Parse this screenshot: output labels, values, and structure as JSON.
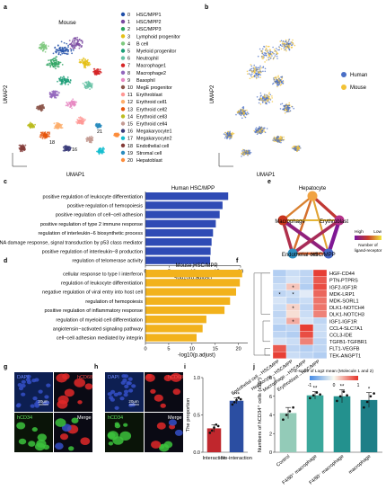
{
  "panel_letters": [
    "a",
    "b",
    "c",
    "d",
    "e",
    "f",
    "g",
    "h",
    "i",
    "j"
  ],
  "umap_labels": {
    "x": "UMAP1",
    "y": "UMAP2",
    "title_a": "Mouse"
  },
  "cluster_legend": [
    {
      "n": "0",
      "name": "HSC/MPP1",
      "color": "#1f4ea8"
    },
    {
      "n": "1",
      "name": "HSC/MPP2",
      "color": "#7a4aa0"
    },
    {
      "n": "2",
      "name": "HSC/MPP3",
      "color": "#2ca25f"
    },
    {
      "n": "3",
      "name": "Lymphoid progenitor",
      "color": "#e5c018"
    },
    {
      "n": "4",
      "name": "B cell",
      "color": "#7fc97f"
    },
    {
      "n": "5",
      "name": "Myeloid progenitor",
      "color": "#1b9e77"
    },
    {
      "n": "6",
      "name": "Neutrophil",
      "color": "#66c2a5"
    },
    {
      "n": "7",
      "name": "Macrophage1",
      "color": "#d62728"
    },
    {
      "n": "8",
      "name": "Macrophage2",
      "color": "#9467bd"
    },
    {
      "n": "9",
      "name": "Basophil",
      "color": "#e78ac3"
    },
    {
      "n": "10",
      "name": "MegE progenitor",
      "color": "#8c564b"
    },
    {
      "n": "11",
      "name": "Erythroblast",
      "color": "#ff9896"
    },
    {
      "n": "12",
      "name": "Erythroid cell1",
      "color": "#fdae6b"
    },
    {
      "n": "13",
      "name": "Erythroid cell2",
      "color": "#e6550d"
    },
    {
      "n": "14",
      "name": "Erythroid cell3",
      "color": "#bcbd22"
    },
    {
      "n": "15",
      "name": "Erythroid cell4",
      "color": "#c49c94"
    },
    {
      "n": "16",
      "name": "Megakaryocyte1",
      "color": "#393b79"
    },
    {
      "n": "17",
      "name": "Megakaryocyte2",
      "color": "#17becf"
    },
    {
      "n": "18",
      "name": "Endothelial cell",
      "color": "#843c39"
    },
    {
      "n": "19",
      "name": "Stromal cell",
      "color": "#2b8cbe"
    },
    {
      "n": "20",
      "name": "Hepatoblast",
      "color": "#fd8d3c"
    }
  ],
  "umap_a_cluster_marks": [
    "18",
    "16",
    "21"
  ],
  "species_legend": [
    {
      "name": "Human",
      "color": "#4a6fc6"
    },
    {
      "name": "Mouse",
      "color": "#f2c236"
    }
  ],
  "chart_data": [
    {
      "panel": "c",
      "type": "bar",
      "orientation": "horizontal",
      "title": "Human HSC/MPP",
      "xlabel": "-log10(p.adjust)",
      "xlim": [
        0,
        20
      ],
      "color": "#2f4bb5",
      "categories": [
        "positive regulation of leukocyte differentiation",
        "positive regulation of hemopoiesis",
        "positive regulation of cell−cell adhesion",
        "positive regulation of type 2 immune response",
        "regulation of interleukin−6 biosynthetic process",
        "regulation of DNA damage response, signal transduction by p53 class mediator",
        "positive regulation of interleukin−8 production",
        "regulation of telomerase activity"
      ],
      "values": [
        17.4,
        16.2,
        15.6,
        14.8,
        14.2,
        13.9,
        13.7,
        13.6
      ],
      "ticks": [
        0,
        5,
        10,
        15,
        20
      ]
    },
    {
      "panel": "d",
      "type": "bar",
      "orientation": "horizontal",
      "title": "Mouse HSC/MPP",
      "xlabel": "-log10(p.adjust)",
      "xlim": [
        0,
        22
      ],
      "color": "#f2b21c",
      "categories": [
        "cellular response to type I interferon",
        "regulation of leukocyte differentiation",
        "negative regulation of viral entry into host cell",
        "regulation of hemopoiesis",
        "positive regulation of inflammatory response",
        "regulation of myeloid cell differentiation",
        "angiotensin−activated signaling pathway",
        "cell−cell adhesion mediated by integrin"
      ],
      "values": [
        20.8,
        20.3,
        19.5,
        18.2,
        17.0,
        13.1,
        12.3,
        11.0
      ],
      "ticks": [
        0,
        5,
        10,
        15,
        20
      ]
    },
    {
      "panel": "e",
      "type": "network",
      "nodes": [
        "Hepatocyte",
        "Erythroblast",
        "HSC/MPP",
        "Endothelial cell",
        "Macrophage"
      ],
      "node_colors": [
        "#f1a342",
        "#b5328a",
        "#4569c7",
        "#2e8fc0",
        "#c8341d"
      ],
      "edges": [
        {
          "from": "Hepatocyte",
          "to": "Erythroblast",
          "weight": 0.55
        },
        {
          "from": "Erythroblast",
          "to": "HSC/MPP",
          "weight": 0.95
        },
        {
          "from": "HSC/MPP",
          "to": "Endothelial cell",
          "weight": 0.4
        },
        {
          "from": "Endothelial cell",
          "to": "Macrophage",
          "weight": 0.65
        },
        {
          "from": "Macrophage",
          "to": "Hepatocyte",
          "weight": 0.3
        },
        {
          "from": "Hepatocyte",
          "to": "HSC/MPP",
          "weight": 0.2
        },
        {
          "from": "Hepatocyte",
          "to": "Endothelial cell",
          "weight": 0.35
        },
        {
          "from": "Macrophage",
          "to": "Erythroblast",
          "weight": 0.15
        },
        {
          "from": "Macrophage",
          "to": "HSC/MPP",
          "weight": 0.85
        },
        {
          "from": "Erythroblast",
          "to": "Endothelial cell",
          "weight": 0.7
        }
      ],
      "legend_title": "Number of ligand-receptor",
      "legend_high": "High",
      "legend_low": "Low"
    },
    {
      "panel": "f",
      "type": "heatmap",
      "rows": [
        "HGF-CD44",
        "PTN-PTPRS",
        "IGF2-IGF1R",
        "MDK-LRP1",
        "MDK-SORL1",
        "DLK1-NOTCH4",
        "DLK1-NOTCH3",
        "IGF1-IGF1R",
        "CCL4-SLC7A1",
        "CCL3-IDE",
        "TGFB1-TGFBR1",
        "FLT1-VEGFB",
        "TEK-ANGPT1"
      ],
      "cols": [
        "Endothelial cell→HSC/MPP",
        "Hepatocyte→HSC/MPP",
        "Macrophage→HSC/MPP",
        "Erythroblast→HSC/MPP"
      ],
      "values": [
        [
          -0.6,
          -0.4,
          -0.5,
          1.4
        ],
        [
          -0.5,
          -0.3,
          -0.5,
          1.2
        ],
        [
          -0.4,
          0.4,
          -0.6,
          1.3
        ],
        [
          -0.5,
          -0.4,
          -0.2,
          1.1
        ],
        [
          -0.3,
          -0.5,
          -0.4,
          1.0
        ],
        [
          -0.4,
          0.3,
          -0.5,
          1.0
        ],
        [
          -0.5,
          0.2,
          -0.4,
          0.9
        ],
        [
          -0.4,
          0.6,
          -0.3,
          -0.5
        ],
        [
          -0.6,
          -0.5,
          1.4,
          -0.4
        ],
        [
          -0.5,
          -0.6,
          1.3,
          -0.4
        ],
        [
          -0.3,
          -0.4,
          0.9,
          -0.5
        ],
        [
          1.2,
          -0.5,
          -0.6,
          -0.5
        ],
        [
          1.4,
          -0.4,
          -0.5,
          -0.6
        ]
      ],
      "stars": [
        [
          2,
          1
        ],
        [
          3,
          1
        ],
        [
          3,
          0
        ],
        [
          5,
          1
        ],
        [
          7,
          1
        ]
      ],
      "scale_title": "Z-score of Log2 mean (Molecule 1 and 2)",
      "scale_ticks": [
        "-1",
        "0",
        "1"
      ]
    },
    {
      "panel": "i",
      "type": "bar",
      "ylabel": "The proportion",
      "ylim": [
        0,
        1.0
      ],
      "categories": [
        "Interaction",
        "No-interaction"
      ],
      "values": [
        0.32,
        0.69
      ],
      "errors": [
        0.05,
        0.04
      ],
      "colors": [
        "#c0272d",
        "#2b4ea2"
      ],
      "points": [
        [
          0.26,
          0.29,
          0.33,
          0.37,
          0.35
        ],
        [
          0.64,
          0.67,
          0.7,
          0.73,
          0.71
        ]
      ],
      "ticks": [
        "0.0",
        "0.5",
        "1.0"
      ],
      "significance": [
        "",
        "***"
      ]
    },
    {
      "panel": "j",
      "type": "bar",
      "ylabel": "Numbers of hCD34⁺ cells (x10⁴)",
      "ylim": [
        0,
        8
      ],
      "categories": [
        "Control",
        "F4/80⁺ macrophage",
        "F4/80⁻ macrophage",
        "macrophage"
      ],
      "values": [
        4.2,
        6.1,
        6.0,
        5.6
      ],
      "errors": [
        0.6,
        0.4,
        0.7,
        0.8
      ],
      "colors": [
        "#93cbb8",
        "#3aa79b",
        "#23918e",
        "#1e7f87"
      ],
      "points": [
        [
          3.5,
          4.0,
          4.4,
          4.8
        ],
        [
          5.8,
          6.1,
          6.4,
          6.2
        ],
        [
          5.5,
          6.0,
          6.5,
          6.1
        ],
        [
          4.8,
          5.4,
          6.0,
          6.3
        ]
      ],
      "ticks": [
        "0",
        "2",
        "4",
        "6",
        "8"
      ],
      "significance": [
        "",
        "**",
        "**",
        "*"
      ]
    }
  ],
  "micrographs": {
    "g": {
      "tl": "DAPI",
      "tr": "hCD68",
      "bl": "hCD34",
      "br": "Merge",
      "scale": "20μm"
    },
    "h": {
      "tl": "DAPI",
      "tr": "hCD68",
      "bl": "hCD34",
      "br": "Merge",
      "scale": "20μm"
    }
  }
}
